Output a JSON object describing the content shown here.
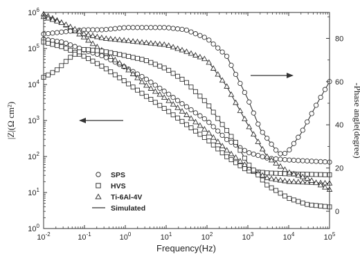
{
  "chart_data": {
    "type": "scatter",
    "title": "",
    "xlabel": "Frequency(Hz)",
    "ylabel_left": "|Z|(Ω cm²)",
    "ylabel_right": "-Phase angle(degree)",
    "x_scale": "log",
    "y_left_scale": "log",
    "xlim": [
      0.01,
      100000
    ],
    "ylim_left": [
      1,
      1000000
    ],
    "ylim_right": [
      -8,
      92
    ],
    "x_ticks": [
      "10-2",
      "10-1",
      "100",
      "101",
      "102",
      "103",
      "104",
      "105"
    ],
    "y_left_ticks": [
      "100",
      "101",
      "102",
      "103",
      "104",
      "105",
      "106"
    ],
    "y_right_ticks": [
      "0",
      "20",
      "40",
      "60",
      "80"
    ],
    "grid": false,
    "legend": {
      "position": "lower-left",
      "entries": [
        {
          "label": "SPS",
          "marker": "circle"
        },
        {
          "label": "HVS",
          "marker": "square"
        },
        {
          "label": "Ti-6Al-4V",
          "marker": "triangle"
        },
        {
          "label": "Simulated",
          "marker": "line"
        }
      ]
    },
    "annotations": [
      {
        "type": "arrow",
        "direction": "left",
        "meaning": "left axis"
      },
      {
        "type": "arrow",
        "direction": "right",
        "meaning": "right axis"
      }
    ],
    "series": [
      {
        "marker": "circle",
        "axis": "left",
        "x": [
          0.01,
          0.03,
          0.1,
          0.3,
          1,
          3,
          10,
          30,
          100,
          300,
          1000,
          3000,
          10000,
          30000,
          100000
        ],
        "y": [
          180000,
          150000,
          90000,
          60000,
          30000,
          15000,
          6000,
          2500,
          1000,
          300,
          130,
          90,
          80,
          75,
          70
        ]
      },
      {
        "marker": "square",
        "axis": "left",
        "x": [
          0.01,
          0.03,
          0.1,
          0.3,
          1,
          3,
          10,
          30,
          100,
          300,
          1000,
          3000,
          10000,
          30000,
          100000
        ],
        "y": [
          150000,
          110000,
          60000,
          30000,
          12000,
          5000,
          2000,
          800,
          300,
          100,
          40,
          35,
          33,
          32,
          31
        ]
      },
      {
        "marker": "triangle",
        "axis": "left",
        "x": [
          0.01,
          0.03,
          0.1,
          0.3,
          1,
          3,
          10,
          30,
          100,
          300,
          1000,
          3000,
          10000,
          30000,
          100000
        ],
        "y": [
          900000,
          500000,
          200000,
          80000,
          30000,
          10000,
          4000,
          1500,
          500,
          150,
          50,
          25,
          20,
          19,
          18
        ]
      },
      {
        "marker": "square",
        "axis": "right",
        "x": [
          0.01,
          0.02,
          0.05,
          0.1,
          0.3,
          1,
          3,
          10,
          30,
          100,
          200,
          500,
          1000,
          3000,
          10000,
          30000,
          100000
        ],
        "y": [
          62,
          65,
          72,
          75,
          74,
          72,
          70,
          66,
          60,
          50,
          42,
          32,
          22,
          12,
          6,
          3,
          2
        ]
      },
      {
        "marker": "circle",
        "axis": "right",
        "x": [
          0.01,
          0.03,
          0.1,
          0.3,
          1,
          3,
          10,
          30,
          100,
          300,
          1000,
          2000,
          5000,
          7000,
          10000,
          20000,
          50000,
          100000
        ],
        "y": [
          82,
          83,
          84,
          84,
          85,
          85,
          85,
          84,
          80,
          72,
          52,
          38,
          28,
          26,
          28,
          36,
          50,
          60
        ]
      },
      {
        "marker": "triangle",
        "axis": "right",
        "x": [
          0.01,
          0.03,
          0.1,
          0.3,
          1,
          3,
          10,
          30,
          100,
          300,
          1000,
          3000,
          10000,
          30000,
          100000
        ],
        "y": [
          90,
          87,
          82,
          80,
          79,
          78,
          77,
          74,
          70,
          58,
          40,
          25,
          18,
          15,
          10
        ]
      }
    ]
  }
}
